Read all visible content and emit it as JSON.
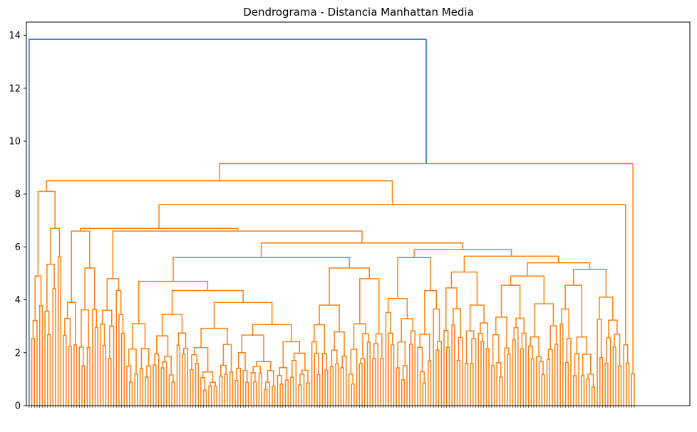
{
  "chart_data": {
    "type": "dendrogram",
    "title": "Dendrograma - Distancia Manhattan Media",
    "xlabel": "",
    "ylabel": "",
    "ylim": [
      0,
      14.5
    ],
    "yticks": [
      0,
      2,
      4,
      6,
      8,
      10,
      12,
      14
    ],
    "grid": false,
    "legend": "none",
    "colors": {
      "root_link": "#1f77b4",
      "cluster_links": "#ff7f0e"
    },
    "leaf_count_approx": 250,
    "merge_heights": {
      "root": 13.85,
      "main_cluster": 9.15,
      "level_2": 8.5,
      "level_3": 7.6,
      "level_4": 6.7,
      "level_5": 6.6,
      "level_6": 6.15,
      "left_sub_1": 8.1,
      "left_sub_2": 6.6,
      "left_sub_3": 5.2,
      "mid_left": 4.8,
      "mid_block": 5.6,
      "mid_block_left": 4.7,
      "mid_block_right": 5.2,
      "right_block": 5.9,
      "right_block_sub": 5.65,
      "right_block_sub_2": 5.4,
      "right_block_sub_3": 5.15,
      "right_block_sub_4": 4.9
    }
  }
}
